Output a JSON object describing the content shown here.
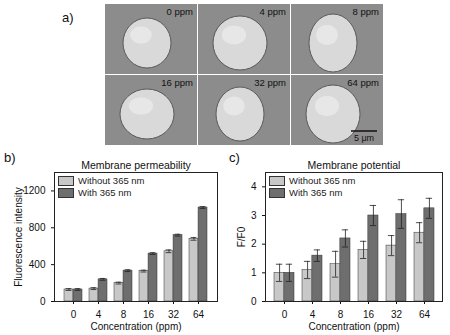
{
  "images": {
    "label": "a)",
    "captions": [
      "0 ppm",
      "4 ppm",
      "8 ppm",
      "16 ppm",
      "32 ppm",
      "64 ppm"
    ],
    "scale_bar": "5 μm"
  },
  "chart_data": [
    {
      "type": "bar",
      "annotations": [
        "b)"
      ],
      "title": "Membrane permeability",
      "x_label": "Concentration (ppm)",
      "y_label": "Fluorescence intensity",
      "categories": [
        0,
        4,
        8,
        16,
        32,
        64
      ],
      "series": [
        {
          "name": "Without 365 nm",
          "color": "#c8c8c8",
          "values": [
            130,
            140,
            200,
            330,
            545,
            680
          ],
          "errors": [
            10,
            10,
            10,
            10,
            15,
            15
          ]
        },
        {
          "name": "With 365 nm",
          "color": "#6e6e6e",
          "values": [
            130,
            240,
            335,
            520,
            720,
            1020
          ],
          "errors": [
            10,
            10,
            10,
            10,
            10,
            10
          ]
        }
      ],
      "ylim": [
        0,
        1400
      ],
      "yticks": [
        0,
        400,
        800,
        1200
      ],
      "legend": "top-left"
    },
    {
      "type": "bar",
      "annotations": [
        "c)"
      ],
      "title": "Membrane potential",
      "x_label": "Concentration (ppm)",
      "y_label": "F/F0",
      "categories": [
        0,
        4,
        8,
        16,
        32,
        64
      ],
      "series": [
        {
          "name": "Without 365 nm",
          "color": "#c8c8c8",
          "values": [
            1.0,
            1.1,
            1.3,
            1.8,
            1.95,
            2.4
          ],
          "errors": [
            0.3,
            0.3,
            0.45,
            0.3,
            0.35,
            0.35
          ]
        },
        {
          "name": "With 365 nm",
          "color": "#6e6e6e",
          "values": [
            1.0,
            1.6,
            2.2,
            3.0,
            3.05,
            3.25
          ],
          "errors": [
            0.3,
            0.2,
            0.3,
            0.35,
            0.5,
            0.35
          ]
        }
      ],
      "ylim": [
        0,
        4.5
      ],
      "yticks": [
        0,
        1,
        2,
        3,
        4
      ],
      "legend": "top-left"
    }
  ]
}
